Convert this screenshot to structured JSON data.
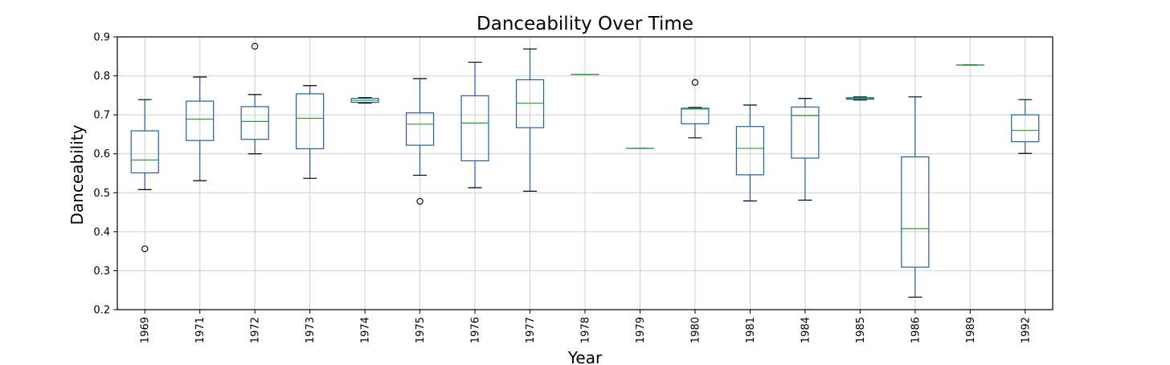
{
  "chart_data": {
    "type": "box",
    "title": "Danceability Over Time",
    "xlabel": "Year",
    "ylabel": "Danceability",
    "ylim": [
      0.2,
      0.9
    ],
    "yticks": [
      "0.2",
      "0.3",
      "0.4",
      "0.5",
      "0.6",
      "0.7",
      "0.8",
      "0.9"
    ],
    "grid": true,
    "colors": {
      "box": "#1f5fa8",
      "median": "#2ca02c",
      "flier": "#000000"
    },
    "categories": [
      "1969",
      "1971",
      "1972",
      "1973",
      "1974",
      "1975",
      "1976",
      "1977",
      "1978",
      "1979",
      "1980",
      "1981",
      "1984",
      "1985",
      "1986",
      "1989",
      "1992"
    ],
    "boxes": [
      {
        "label": "1969",
        "whislo": 0.508,
        "q1": 0.551,
        "med": 0.584,
        "q3": 0.659,
        "whishi": 0.739,
        "fliers": [
          0.356
        ]
      },
      {
        "label": "1971",
        "whislo": 0.531,
        "q1": 0.634,
        "med": 0.689,
        "q3": 0.735,
        "whishi": 0.797,
        "fliers": []
      },
      {
        "label": "1972",
        "whislo": 0.6,
        "q1": 0.637,
        "med": 0.683,
        "q3": 0.721,
        "whishi": 0.752,
        "fliers": [
          0.876
        ]
      },
      {
        "label": "1973",
        "whislo": 0.537,
        "q1": 0.613,
        "med": 0.691,
        "q3": 0.754,
        "whishi": 0.775,
        "fliers": []
      },
      {
        "label": "1974",
        "whislo": 0.73,
        "q1": 0.732,
        "med": 0.737,
        "q3": 0.742,
        "whishi": 0.744,
        "fliers": []
      },
      {
        "label": "1975",
        "whislo": 0.545,
        "q1": 0.622,
        "med": 0.676,
        "q3": 0.705,
        "whishi": 0.793,
        "fliers": [
          0.478
        ]
      },
      {
        "label": "1976",
        "whislo": 0.513,
        "q1": 0.582,
        "med": 0.679,
        "q3": 0.749,
        "whishi": 0.835,
        "fliers": []
      },
      {
        "label": "1977",
        "whislo": 0.504,
        "q1": 0.667,
        "med": 0.73,
        "q3": 0.79,
        "whishi": 0.869,
        "fliers": []
      },
      {
        "label": "1978",
        "whislo": 0.804,
        "q1": 0.804,
        "med": 0.804,
        "q3": 0.804,
        "whishi": 0.804,
        "fliers": []
      },
      {
        "label": "1979",
        "whislo": 0.614,
        "q1": 0.614,
        "med": 0.614,
        "q3": 0.614,
        "whishi": 0.614,
        "fliers": []
      },
      {
        "label": "1980",
        "whislo": 0.641,
        "q1": 0.677,
        "med": 0.715,
        "q3": 0.717,
        "whishi": 0.719,
        "fliers": [
          0.783
        ]
      },
      {
        "label": "1981",
        "whislo": 0.479,
        "q1": 0.546,
        "med": 0.614,
        "q3": 0.67,
        "whishi": 0.725,
        "fliers": []
      },
      {
        "label": "1984",
        "whislo": 0.481,
        "q1": 0.589,
        "med": 0.698,
        "q3": 0.72,
        "whishi": 0.742,
        "fliers": []
      },
      {
        "label": "1985",
        "whislo": 0.738,
        "q1": 0.74,
        "med": 0.742,
        "q3": 0.744,
        "whishi": 0.746,
        "fliers": []
      },
      {
        "label": "1986",
        "whislo": 0.232,
        "q1": 0.309,
        "med": 0.408,
        "q3": 0.592,
        "whishi": 0.746,
        "fliers": []
      },
      {
        "label": "1989",
        "whislo": 0.828,
        "q1": 0.828,
        "med": 0.828,
        "q3": 0.828,
        "whishi": 0.828,
        "fliers": []
      },
      {
        "label": "1992",
        "whislo": 0.601,
        "q1": 0.631,
        "med": 0.66,
        "q3": 0.7,
        "whishi": 0.739,
        "fliers": []
      }
    ]
  }
}
